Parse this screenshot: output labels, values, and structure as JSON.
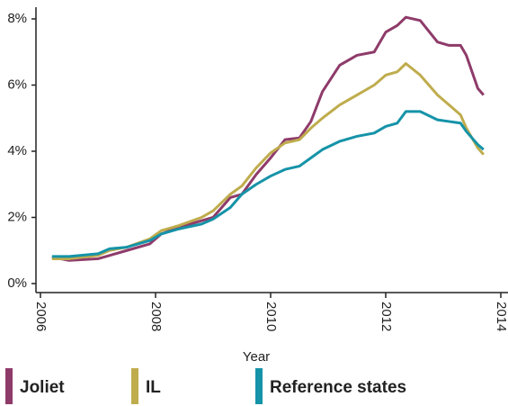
{
  "chart_data": {
    "type": "line",
    "x_label": "Year",
    "x": [
      2006.2,
      2006.5,
      2007,
      2007.2,
      2007.5,
      2007.9,
      2008.1,
      2008.4,
      2008.8,
      2009,
      2009.3,
      2009.5,
      2009.75,
      2010,
      2010.25,
      2010.5,
      2010.7,
      2010.9,
      2011.2,
      2011.5,
      2011.8,
      2012,
      2012.2,
      2012.35,
      2012.6,
      2012.9,
      2013.1,
      2013.3,
      2013.4,
      2013.6,
      2013.7
    ],
    "series": [
      {
        "name": "Joliet",
        "color": "#8e3b6a",
        "values": [
          0.8,
          0.7,
          0.75,
          0.85,
          1.0,
          1.2,
          1.5,
          1.7,
          1.9,
          2.0,
          2.6,
          2.7,
          3.3,
          3.8,
          4.35,
          4.4,
          4.9,
          5.8,
          6.6,
          6.9,
          7.0,
          7.6,
          7.8,
          8.05,
          7.95,
          7.3,
          7.2,
          7.2,
          6.9,
          5.9,
          5.7
        ]
      },
      {
        "name": "IL",
        "color": "#bfac4d",
        "values": [
          0.75,
          0.75,
          0.85,
          1.0,
          1.1,
          1.35,
          1.6,
          1.75,
          2.0,
          2.2,
          2.7,
          2.95,
          3.5,
          3.95,
          4.25,
          4.35,
          4.7,
          5.0,
          5.4,
          5.7,
          6.0,
          6.3,
          6.4,
          6.65,
          6.3,
          5.7,
          5.4,
          5.1,
          4.7,
          4.1,
          3.9
        ]
      },
      {
        "name": "Reference states",
        "color": "#1593a8",
        "values": [
          0.82,
          0.82,
          0.9,
          1.05,
          1.1,
          1.3,
          1.5,
          1.65,
          1.8,
          1.95,
          2.3,
          2.7,
          3.0,
          3.25,
          3.45,
          3.55,
          3.8,
          4.05,
          4.3,
          4.45,
          4.55,
          4.75,
          4.85,
          5.2,
          5.2,
          4.95,
          4.9,
          4.85,
          4.6,
          4.2,
          4.05
        ]
      }
    ],
    "xlim": [
      2006,
      2014
    ],
    "xticks": [
      2006,
      2008,
      2010,
      2012,
      2014
    ],
    "ylim": [
      0,
      8
    ],
    "yticks": [
      {
        "value": 0,
        "label": "0%"
      },
      {
        "value": 2,
        "label": "2%"
      },
      {
        "value": 4,
        "label": "4%"
      },
      {
        "value": 6,
        "label": "6%"
      },
      {
        "value": 8,
        "label": "8%"
      }
    ],
    "grid": false
  }
}
